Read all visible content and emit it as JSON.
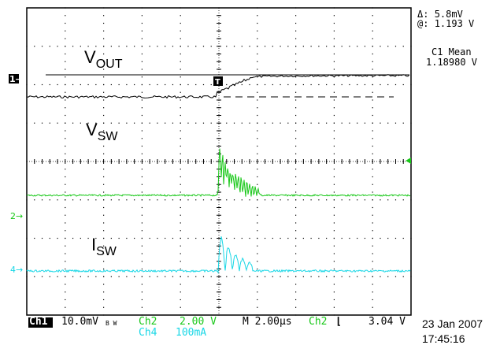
{
  "cursor": {
    "delta_symbol": "Δ:",
    "delta_value": "5.8mV",
    "at_symbol": "@:",
    "at_value": "1.193 V"
  },
  "measurement": {
    "label": "C1 Mean",
    "value": "1.18980 V"
  },
  "waveform_labels": {
    "vout_main": "V",
    "vout_sub": "OUT",
    "vsw_main": "V",
    "vsw_sub": "SW",
    "isw_main": "I",
    "isw_sub": "SW"
  },
  "markers": {
    "ch1": "1→",
    "ch2": "2→",
    "ch4": "4→",
    "trigger": "T"
  },
  "status_bar": {
    "ch1_tag": "Ch1",
    "ch1_scale": "10.0mV",
    "bw_symbol": "B W",
    "ch2_tag": "Ch2",
    "ch2_scale": "2.00 V",
    "ch4_tag": "Ch4",
    "ch4_scale": "100mA",
    "timebase": "M 2.00µs",
    "trig_source": "Ch2",
    "trig_slope": "⌊",
    "trig_level": "3.04 V",
    "date": "23 Jan 2007",
    "time": "17:45:16"
  },
  "colors": {
    "ch1": "#000000",
    "ch2": "#19c819",
    "ch4": "#19d7e6",
    "grid": "#000000"
  }
}
